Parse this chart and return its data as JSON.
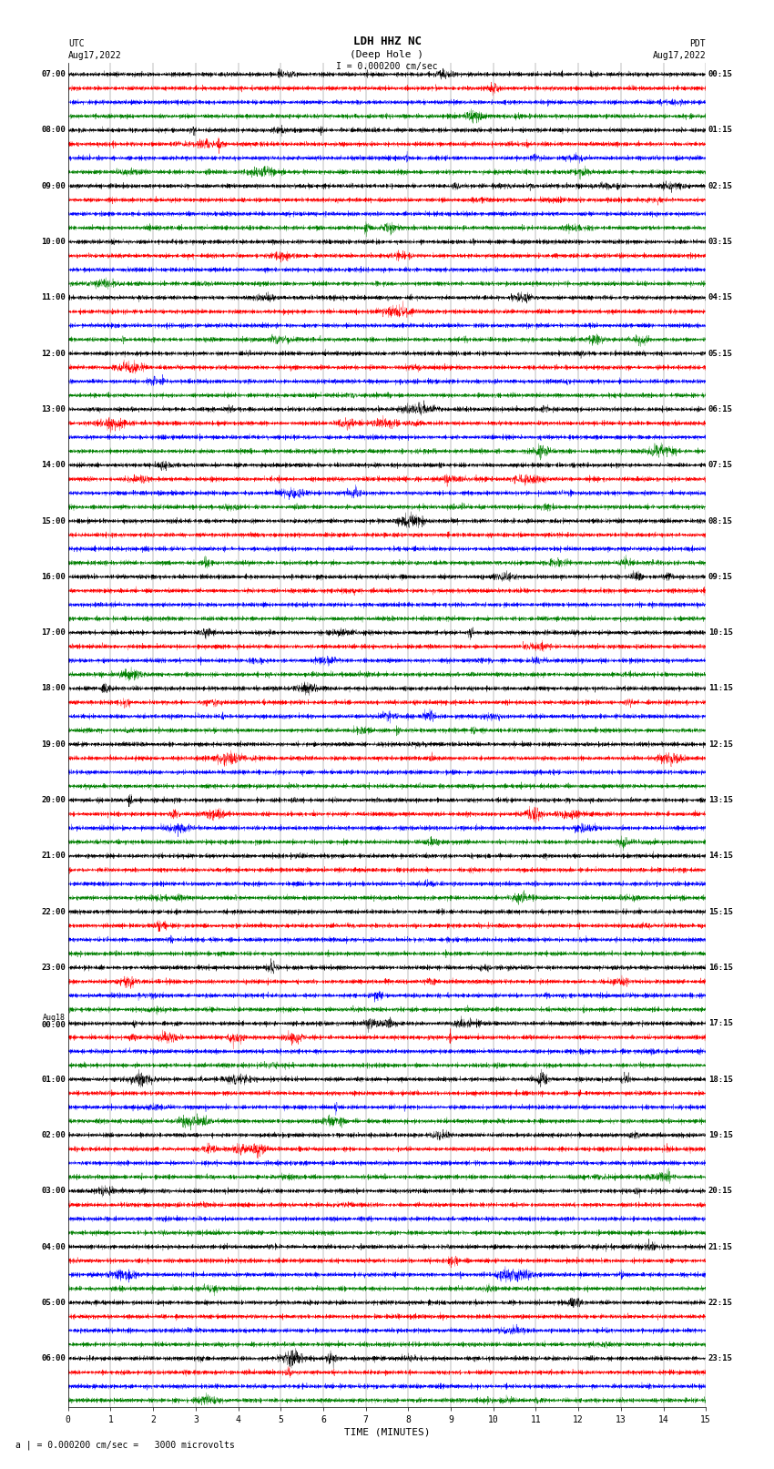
{
  "title_line1": "LDH HHZ NC",
  "title_line2": "(Deep Hole )",
  "scale_label": "I = 0.000200 cm/sec",
  "left_label_top": "UTC",
  "left_label_date": "Aug17,2022",
  "right_label_top": "PDT",
  "right_label_date": "Aug17,2022",
  "bottom_label": "TIME (MINUTES)",
  "footer_label": "= 0.000200 cm/sec =   3000 microvolts",
  "footer_prefix": "a |",
  "xlabel_ticks": [
    0,
    1,
    2,
    3,
    4,
    5,
    6,
    7,
    8,
    9,
    10,
    11,
    12,
    13,
    14,
    15
  ],
  "left_times": [
    "07:00",
    "08:00",
    "09:00",
    "10:00",
    "11:00",
    "12:00",
    "13:00",
    "14:00",
    "15:00",
    "16:00",
    "17:00",
    "18:00",
    "19:00",
    "20:00",
    "21:00",
    "22:00",
    "23:00",
    "Aug18\n00:00",
    "01:00",
    "02:00",
    "03:00",
    "04:00",
    "05:00",
    "06:00"
  ],
  "right_times": [
    "00:15",
    "01:15",
    "02:15",
    "03:15",
    "04:15",
    "05:15",
    "06:15",
    "07:15",
    "08:15",
    "09:15",
    "10:15",
    "11:15",
    "12:15",
    "13:15",
    "14:15",
    "15:15",
    "16:15",
    "17:15",
    "18:15",
    "19:15",
    "20:15",
    "21:15",
    "22:15",
    "23:15"
  ],
  "num_hours": 24,
  "traces_per_hour": 4,
  "colors": [
    "black",
    "red",
    "blue",
    "green"
  ],
  "bg_color": "white",
  "fig_width": 8.5,
  "fig_height": 16.13,
  "dpi": 100,
  "noise_amplitude": 0.08,
  "samples_per_trace": 3600,
  "seed": 42
}
